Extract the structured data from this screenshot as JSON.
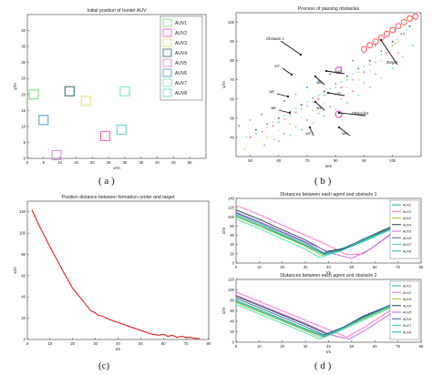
{
  "chart_data": [
    {
      "panel": "(a)",
      "type": "scatter",
      "title": "Initial position of hunter AUV",
      "xlabel": "x/m",
      "ylabel": "y/m",
      "xlim": [
        0,
        55
      ],
      "ylim": [
        0,
        45
      ],
      "xticks": [
        "0",
        "5",
        "10",
        "15",
        "20",
        "25",
        "30",
        "35",
        "40",
        "45",
        "50"
      ],
      "yticks": [
        "0",
        "5",
        "10",
        "15",
        "20",
        "25",
        "30",
        "35",
        "40"
      ],
      "grid": false,
      "legend_placement": "top-right",
      "series": [
        {
          "name": "AUV1",
          "color": "#7fe27f",
          "x": [
            2
          ],
          "y": [
            20
          ]
        },
        {
          "name": "AUV2",
          "color": "#ff66cc",
          "x": [
            24
          ],
          "y": [
            7
          ]
        },
        {
          "name": "AUV3",
          "color": "#e0e07f",
          "x": [
            18
          ],
          "y": [
            18
          ]
        },
        {
          "name": "AUV4",
          "color": "#3a7575",
          "x": [
            13
          ],
          "y": [
            21
          ]
        },
        {
          "name": "AUV5",
          "color": "#d98fe0",
          "x": [
            9
          ],
          "y": [
            1
          ]
        },
        {
          "name": "AUV6",
          "color": "#5fa0c5",
          "x": [
            5
          ],
          "y": [
            12
          ]
        },
        {
          "name": "AUV7",
          "color": "#7fe2c5",
          "x": [
            30
          ],
          "y": [
            21
          ]
        },
        {
          "name": "AUV8",
          "color": "#6fd4d4",
          "x": [
            29
          ],
          "y": [
            9
          ]
        }
      ]
    },
    {
      "panel": "(b)",
      "type": "scatter",
      "title": "Process of passing obstacles",
      "xlabel": "x/m",
      "ylabel": "y/m",
      "xlim": [
        45,
        110
      ],
      "ylim": [
        30,
        105
      ],
      "xticks": [
        "50",
        "60",
        "70",
        "80",
        "90",
        "100"
      ],
      "yticks": [
        "40",
        "50",
        "60",
        "70",
        "80",
        "90",
        "100"
      ],
      "annotations": [
        "Obstacle 1",
        "Obstacle2",
        "Target",
        "w7",
        "w6",
        "w4",
        "w3",
        "w1",
        "r2",
        "w8",
        "w5",
        "w2"
      ],
      "obstacles": [
        {
          "name": "Obstacle 1",
          "x": 81,
          "y": 75
        },
        {
          "name": "Obstacle2",
          "x": 81,
          "y": 52
        }
      ],
      "target_path": {
        "x": [
          90,
          92,
          94,
          96,
          98,
          100,
          102,
          104,
          106,
          108
        ],
        "y": [
          86,
          88,
          90,
          92,
          94,
          96,
          98,
          100,
          102,
          103
        ]
      },
      "trails": [
        {
          "color": "#7fe27f",
          "x": [
            45,
            52,
            60,
            68,
            76,
            84,
            92,
            100
          ],
          "y": [
            38,
            42,
            48,
            55,
            62,
            70,
            78,
            88
          ]
        },
        {
          "color": "#ff66cc",
          "x": [
            50,
            58,
            66,
            74,
            82,
            90,
            98,
            104
          ],
          "y": [
            40,
            46,
            53,
            60,
            66,
            74,
            84,
            94
          ]
        },
        {
          "color": "#e0e07f",
          "x": [
            48,
            56,
            64,
            72,
            80,
            88,
            96,
            102
          ],
          "y": [
            34,
            40,
            47,
            54,
            62,
            70,
            80,
            90
          ]
        },
        {
          "color": "#3a7575",
          "x": [
            52,
            60,
            68,
            76,
            84,
            92,
            100,
            106
          ],
          "y": [
            44,
            50,
            57,
            64,
            72,
            80,
            90,
            98
          ]
        },
        {
          "color": "#d98fe0",
          "x": [
            55,
            62,
            70,
            78,
            86,
            94,
            102
          ],
          "y": [
            36,
            42,
            49,
            56,
            64,
            73,
            84
          ]
        },
        {
          "color": "#5fa0c5",
          "x": [
            46,
            54,
            62,
            70,
            78,
            86,
            94,
            101
          ],
          "y": [
            46,
            52,
            59,
            66,
            73,
            80,
            88,
            96
          ]
        },
        {
          "color": "#7fe2c5",
          "x": [
            58,
            66,
            74,
            82,
            90,
            98,
            105
          ],
          "y": [
            48,
            55,
            62,
            69,
            77,
            86,
            96
          ]
        },
        {
          "color": "#6fd4d4",
          "x": [
            60,
            68,
            76,
            84,
            92,
            100,
            107
          ],
          "y": [
            38,
            44,
            51,
            58,
            66,
            76,
            88
          ]
        }
      ]
    },
    {
      "panel": "(c)",
      "type": "line",
      "title": "Position distance between formation center and target",
      "xlabel": "t/s",
      "ylabel": "s/m",
      "xlim": [
        0,
        80
      ],
      "ylim": [
        0,
        130
      ],
      "xticks": [
        "0",
        "10",
        "20",
        "30",
        "40",
        "50",
        "60",
        "70",
        "80"
      ],
      "yticks": [
        "0",
        "20",
        "40",
        "60",
        "80",
        "100",
        "120"
      ],
      "grid": false,
      "series": [
        {
          "color": "#e02020",
          "x": [
            2,
            5,
            10,
            15,
            20,
            25,
            28,
            30,
            31,
            33,
            36,
            40,
            44,
            48,
            52,
            55,
            58,
            60,
            62,
            64,
            66,
            68,
            70,
            72,
            74,
            76
          ],
          "y": [
            122,
            108,
            87,
            67,
            48,
            35,
            27,
            25,
            23,
            22,
            19,
            16,
            13,
            10,
            7,
            5,
            4,
            5,
            3,
            4,
            2,
            3,
            2,
            2,
            1,
            1
          ]
        }
      ]
    },
    {
      "panel": "(d-top)",
      "type": "line",
      "title": "Distances between each agent and obstacle 1",
      "xlabel": "t/s",
      "ylabel": "s/m",
      "xlim": [
        0,
        80
      ],
      "ylim": [
        0,
        140
      ],
      "xticks": [
        "0",
        "10",
        "20",
        "30",
        "40",
        "50",
        "60",
        "70",
        "80"
      ],
      "yticks": [
        "0",
        "20",
        "40",
        "60",
        "80",
        "100",
        "120",
        "140"
      ],
      "legend_placement": "top-right",
      "series": [
        {
          "name": "AUV1",
          "color": "#22b573",
          "x": [
            0,
            10,
            20,
            30,
            38,
            45,
            55,
            65,
            75
          ],
          "y": [
            105,
            85,
            62,
            40,
            20,
            30,
            50,
            70,
            95
          ]
        },
        {
          "name": "AUV2",
          "color": "#ff66cc",
          "x": [
            0,
            10,
            20,
            30,
            40,
            48,
            55,
            65,
            75
          ],
          "y": [
            125,
            105,
            82,
            60,
            38,
            18,
            20,
            55,
            90
          ]
        },
        {
          "name": "AUV3",
          "color": "#a8c830",
          "x": [
            0,
            10,
            20,
            30,
            37,
            45,
            55,
            65,
            75
          ],
          "y": [
            100,
            80,
            58,
            36,
            16,
            28,
            48,
            70,
            92
          ]
        },
        {
          "name": "AUV4",
          "color": "#1a3d3d",
          "x": [
            0,
            10,
            20,
            30,
            39,
            47,
            55,
            65,
            75
          ],
          "y": [
            115,
            95,
            72,
            50,
            25,
            32,
            52,
            74,
            98
          ]
        },
        {
          "name": "AUV5",
          "color": "#c060e0",
          "x": [
            0,
            10,
            20,
            30,
            42,
            50,
            58,
            66,
            75
          ],
          "y": [
            110,
            90,
            68,
            46,
            20,
            10,
            30,
            60,
            88
          ]
        },
        {
          "name": "AUV6",
          "color": "#3a66a8",
          "x": [
            0,
            10,
            20,
            30,
            38,
            46,
            55,
            65,
            75
          ],
          "y": [
            108,
            88,
            66,
            44,
            22,
            30,
            52,
            72,
            96
          ]
        },
        {
          "name": "AUV7",
          "color": "#3fe2b0",
          "x": [
            0,
            10,
            20,
            30,
            36,
            44,
            55,
            65,
            75
          ],
          "y": [
            95,
            75,
            52,
            30,
            12,
            24,
            46,
            68,
            90
          ]
        },
        {
          "name": "AUV8",
          "color": "#20b0b0",
          "x": [
            0,
            10,
            20,
            30,
            38,
            46,
            55,
            65,
            75
          ],
          "y": [
            102,
            82,
            60,
            38,
            18,
            28,
            48,
            70,
            92
          ]
        }
      ]
    },
    {
      "panel": "(d-bottom)",
      "type": "line",
      "title": "Distances between each agent and obstacle 2",
      "xlabel": "t/s",
      "ylabel": "s/m",
      "xlim": [
        0,
        80
      ],
      "ylim": [
        0,
        120
      ],
      "xticks": [
        "0",
        "10",
        "20",
        "30",
        "40",
        "50",
        "60",
        "70",
        "80"
      ],
      "yticks": [
        "0",
        "20",
        "40",
        "60",
        "80",
        "100",
        "120"
      ],
      "legend_placement": "top-right",
      "series": [
        {
          "name": "AUV1",
          "color": "#22b573",
          "x": [
            0,
            10,
            20,
            30,
            38,
            46,
            55,
            65,
            75
          ],
          "y": [
            80,
            62,
            44,
            26,
            12,
            28,
            48,
            66,
            84
          ]
        },
        {
          "name": "AUV2",
          "color": "#ff66cc",
          "x": [
            0,
            10,
            20,
            30,
            40,
            48,
            56,
            65,
            75
          ],
          "y": [
            96,
            78,
            60,
            42,
            24,
            10,
            30,
            56,
            82
          ]
        },
        {
          "name": "AUV3",
          "color": "#a8c830",
          "x": [
            0,
            10,
            20,
            30,
            37,
            45,
            55,
            65,
            75
          ],
          "y": [
            76,
            58,
            40,
            22,
            8,
            24,
            44,
            64,
            82
          ]
        },
        {
          "name": "AUV4",
          "color": "#1a3d3d",
          "x": [
            0,
            10,
            20,
            30,
            39,
            47,
            55,
            65,
            75
          ],
          "y": [
            88,
            70,
            52,
            34,
            16,
            30,
            50,
            68,
            86
          ]
        },
        {
          "name": "AUV5",
          "color": "#c060e0",
          "x": [
            0,
            10,
            20,
            30,
            41,
            49,
            57,
            66,
            75
          ],
          "y": [
            90,
            72,
            54,
            36,
            14,
            6,
            26,
            52,
            80
          ]
        },
        {
          "name": "AUV6",
          "color": "#3a66a8",
          "x": [
            0,
            10,
            20,
            30,
            38,
            46,
            55,
            65,
            75
          ],
          "y": [
            84,
            66,
            48,
            30,
            14,
            28,
            48,
            68,
            86
          ]
        },
        {
          "name": "AUV7",
          "color": "#3fe2b0",
          "x": [
            0,
            10,
            20,
            30,
            36,
            44,
            55,
            65,
            75
          ],
          "y": [
            72,
            54,
            36,
            18,
            6,
            20,
            42,
            62,
            80
          ]
        },
        {
          "name": "AUV8",
          "color": "#20b0b0",
          "x": [
            0,
            10,
            20,
            30,
            38,
            46,
            55,
            65,
            75
          ],
          "y": [
            78,
            60,
            42,
            24,
            10,
            26,
            46,
            66,
            84
          ]
        }
      ]
    }
  ],
  "labels": {
    "a": "( a )",
    "b": "( b )",
    "c": "(c)",
    "d": "( d )"
  }
}
